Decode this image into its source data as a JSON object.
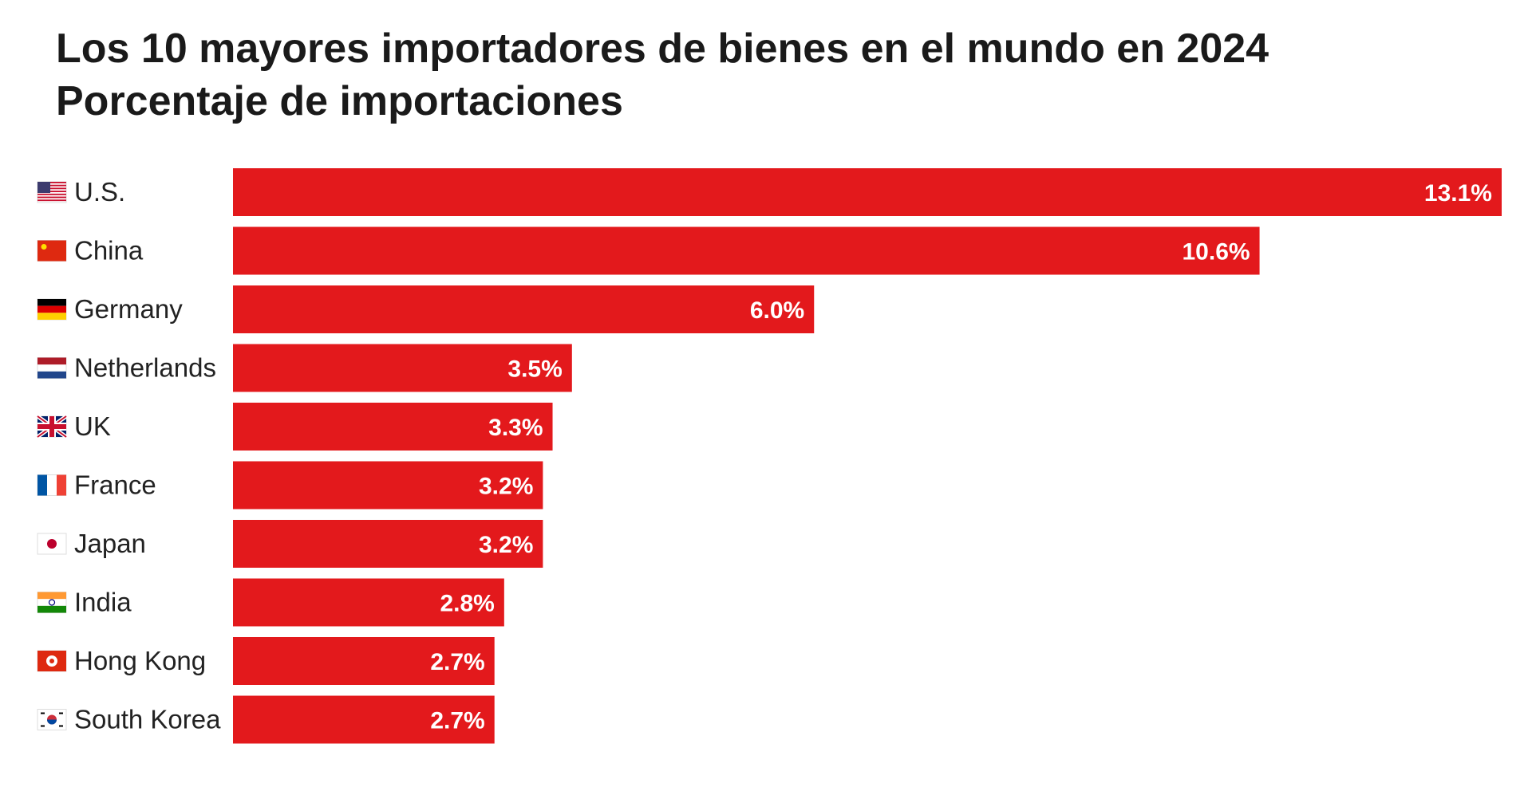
{
  "chart_data": {
    "type": "bar",
    "orientation": "horizontal",
    "title": "Los 10 mayores importadores de bienes en el mundo en 2024",
    "subtitle": "Porcentaje de importaciones",
    "categories": [
      "U.S.",
      "China",
      "Germany",
      "Netherlands",
      "UK",
      "France",
      "Japan",
      "India",
      "Hong Kong",
      "South Korea"
    ],
    "flags": [
      "us-flag-icon",
      "china-flag-icon",
      "germany-flag-icon",
      "netherlands-flag-icon",
      "uk-flag-icon",
      "france-flag-icon",
      "japan-flag-icon",
      "india-flag-icon",
      "hong-kong-flag-icon",
      "south-korea-flag-icon"
    ],
    "values": [
      13.1,
      10.6,
      6.0,
      3.5,
      3.3,
      3.2,
      3.2,
      2.8,
      2.7,
      2.7
    ],
    "value_labels": [
      "13.1%",
      "10.6%",
      "6.0%",
      "3.5%",
      "3.3%",
      "3.2%",
      "3.2%",
      "2.8%",
      "2.7%",
      "2.7%"
    ],
    "bar_color": "#e3191c",
    "grid": false,
    "legend": "none"
  }
}
